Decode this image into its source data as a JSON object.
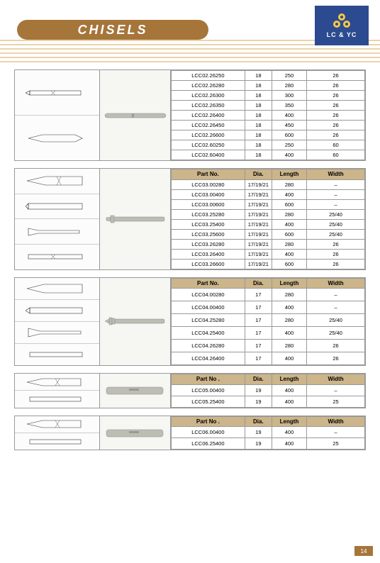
{
  "page": {
    "title": "CHISELS",
    "brand_text": "LC & YC",
    "brand_bg": "#2c4a8f",
    "header_band_bg": "#a6753a",
    "stripe_color": "#d9a85a",
    "page_number": "14",
    "page_num_bg": "#a6753a"
  },
  "headers": {
    "part": "Part No.",
    "part_dot": "Part No .",
    "dia": "Dia.",
    "length": "Length",
    "width": "Width"
  },
  "table1": {
    "rows": [
      {
        "part": "LCC02.26250",
        "dia": "18",
        "len": "250",
        "wid": "26"
      },
      {
        "part": "LCC02.26280",
        "dia": "18",
        "len": "280",
        "wid": "26"
      },
      {
        "part": "LCC02.26300",
        "dia": "18",
        "len": "300",
        "wid": "26"
      },
      {
        "part": "LCC02.26350",
        "dia": "18",
        "len": "350",
        "wid": "26"
      },
      {
        "part": "LCC02.26400",
        "dia": "18",
        "len": "400",
        "wid": "26"
      },
      {
        "part": "LCC02.26450",
        "dia": "18",
        "len": "450",
        "wid": "26"
      },
      {
        "part": "LCC02.26600",
        "dia": "18",
        "len": "600",
        "wid": "26"
      },
      {
        "part": "LCC02.60250",
        "dia": "18",
        "len": "250",
        "wid": "60"
      },
      {
        "part": "LCC02.60400",
        "dia": "18",
        "len": "400",
        "wid": "60"
      }
    ]
  },
  "table2": {
    "rows": [
      {
        "part": "LCC03.00280",
        "dia": "17/19/21",
        "len": "280",
        "wid": "–"
      },
      {
        "part": "LCC03.00400",
        "dia": "17/19/21",
        "len": "400",
        "wid": "–"
      },
      {
        "part": "LCC03.00600",
        "dia": "17/19/21",
        "len": "600",
        "wid": "–"
      },
      {
        "part": "LCC03.25280",
        "dia": "17/19/21",
        "len": "280",
        "wid": "25/40"
      },
      {
        "part": "LCC03.25400",
        "dia": "17/19/21",
        "len": "400",
        "wid": "25/40"
      },
      {
        "part": "LCC03.25600",
        "dia": "17/19/21",
        "len": "600",
        "wid": "25/40"
      },
      {
        "part": "LCC03.26280",
        "dia": "17/19/21",
        "len": "280",
        "wid": "26"
      },
      {
        "part": "LCC03.26400",
        "dia": "17/19/21",
        "len": "400",
        "wid": "26"
      },
      {
        "part": "LCC03.26600",
        "dia": "17/19/21",
        "len": "600",
        "wid": "26"
      }
    ]
  },
  "table3": {
    "rows": [
      {
        "part": "LCC04.00280",
        "dia": "17",
        "len": "280",
        "wid": "–"
      },
      {
        "part": "LCC04.00400",
        "dia": "17",
        "len": "400",
        "wid": "–"
      },
      {
        "part": "LCC04.25280",
        "dia": "17",
        "len": "280",
        "wid": "25/40"
      },
      {
        "part": "LCC04.25400",
        "dia": "17",
        "len": "400",
        "wid": "25/40"
      },
      {
        "part": "LCC04.26280",
        "dia": "17",
        "len": "280",
        "wid": "26"
      },
      {
        "part": "LCC04.26400",
        "dia": "17",
        "len": "400",
        "wid": "26"
      }
    ]
  },
  "table4": {
    "rows": [
      {
        "part": "LCC05.00400",
        "dia": "19",
        "len": "400",
        "wid": "–"
      },
      {
        "part": "LCC05.25400",
        "dia": "19",
        "len": "400",
        "wid": "25"
      }
    ]
  },
  "table5": {
    "rows": [
      {
        "part": "LCC06.00400",
        "dia": "19",
        "len": "400",
        "wid": "–"
      },
      {
        "part": "LCC06.25400",
        "dia": "19",
        "len": "400",
        "wid": "25"
      }
    ]
  },
  "style": {
    "th_bg": "#ccb58a",
    "border_color": "#999999",
    "body_font_size": 7.5,
    "header_font_size": 8
  }
}
